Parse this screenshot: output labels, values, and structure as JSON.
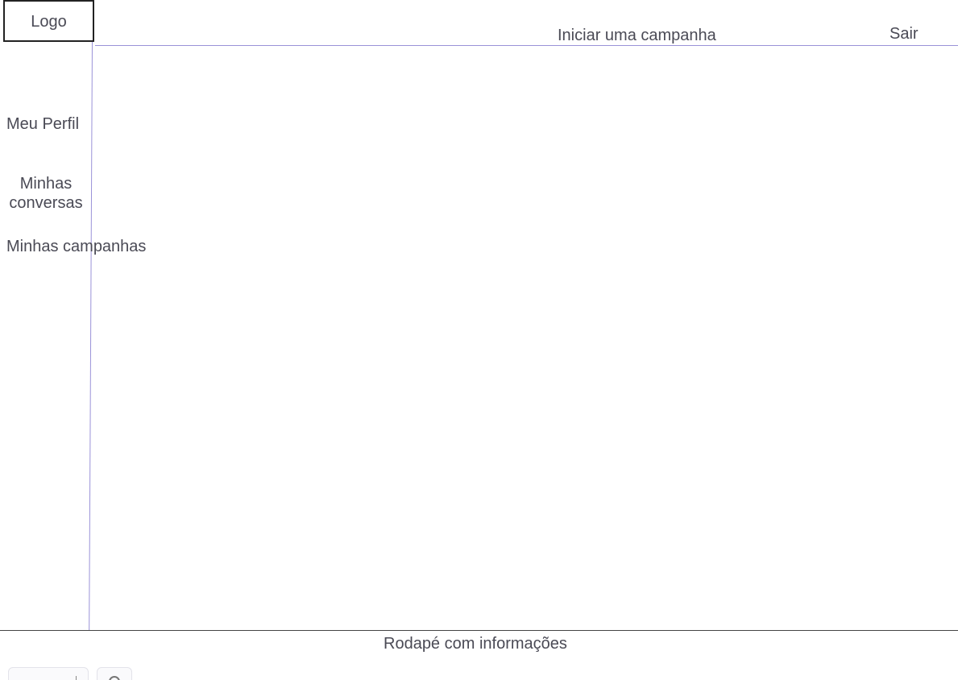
{
  "header": {
    "logo_label": "Logo",
    "nav": {
      "start_campaign_label": "Iniciar uma campanha",
      "logout_label": "Sair"
    }
  },
  "sidebar": {
    "items": [
      {
        "label": "Meu Perfil"
      },
      {
        "label": "Minhas conversas"
      },
      {
        "label": "Minhas campanhas"
      }
    ]
  },
  "footer": {
    "text": "Rodapé com informações"
  },
  "colors": {
    "divider_accent": "#9a92d8",
    "text": "#4a4a55"
  }
}
